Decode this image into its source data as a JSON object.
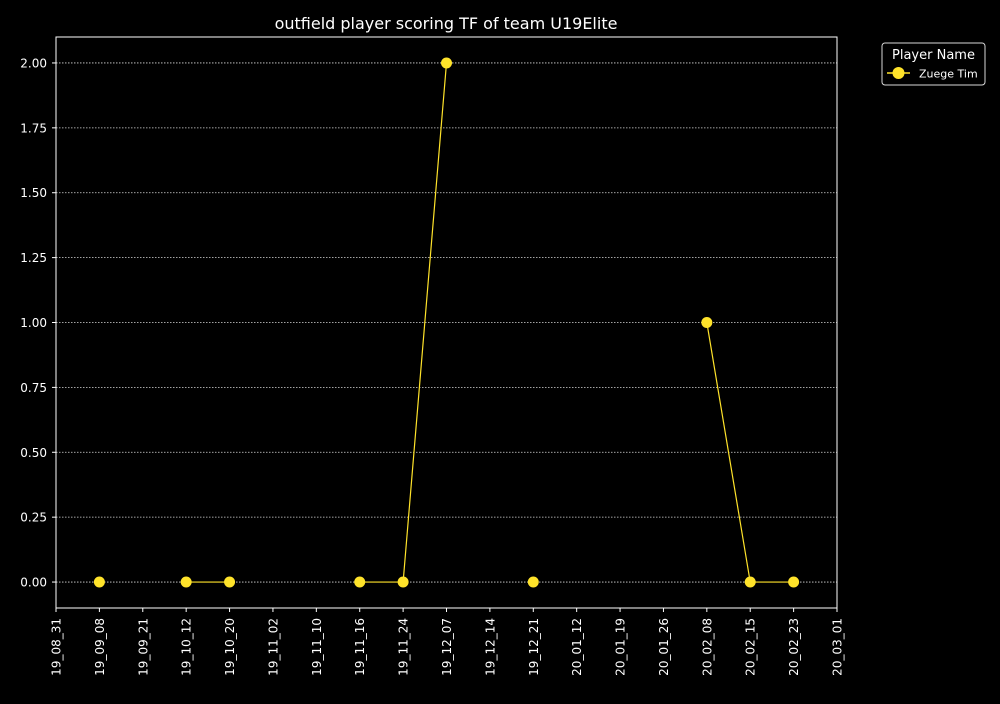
{
  "chart_data": {
    "type": "line",
    "title": "outfield player scoring TF of team U19Elite",
    "xlabel": "",
    "ylabel": "",
    "categories": [
      "19_08_31",
      "19_09_08",
      "19_09_21",
      "19_10_12",
      "19_10_20",
      "19_11_02",
      "19_11_10",
      "19_11_16",
      "19_11_24",
      "19_12_07",
      "19_12_14",
      "19_12_21",
      "20_01_12",
      "20_01_19",
      "20_01_26",
      "20_02_08",
      "20_02_15",
      "20_02_23",
      "20_03_01"
    ],
    "ylim": [
      -0.1,
      2.1
    ],
    "yticks": [
      0.0,
      0.25,
      0.5,
      0.75,
      1.0,
      1.25,
      1.5,
      1.75,
      2.0
    ],
    "ytick_labels": [
      "0.00",
      "0.25",
      "0.50",
      "0.75",
      "1.00",
      "1.25",
      "1.50",
      "1.75",
      "2.00"
    ],
    "grid": true,
    "legend": {
      "title": "Player Name",
      "placement": "outside-top-right"
    },
    "series": [
      {
        "name": "Zuege Tim",
        "color": "#ffe32a",
        "values": [
          null,
          0,
          null,
          0,
          0,
          null,
          null,
          0,
          0,
          2,
          null,
          0,
          null,
          null,
          null,
          1,
          0,
          0,
          null
        ]
      }
    ]
  },
  "colors": {
    "background": "#000000",
    "axes": "#ffffff",
    "grid": "#d9d9d9",
    "text": "#ffffff"
  }
}
